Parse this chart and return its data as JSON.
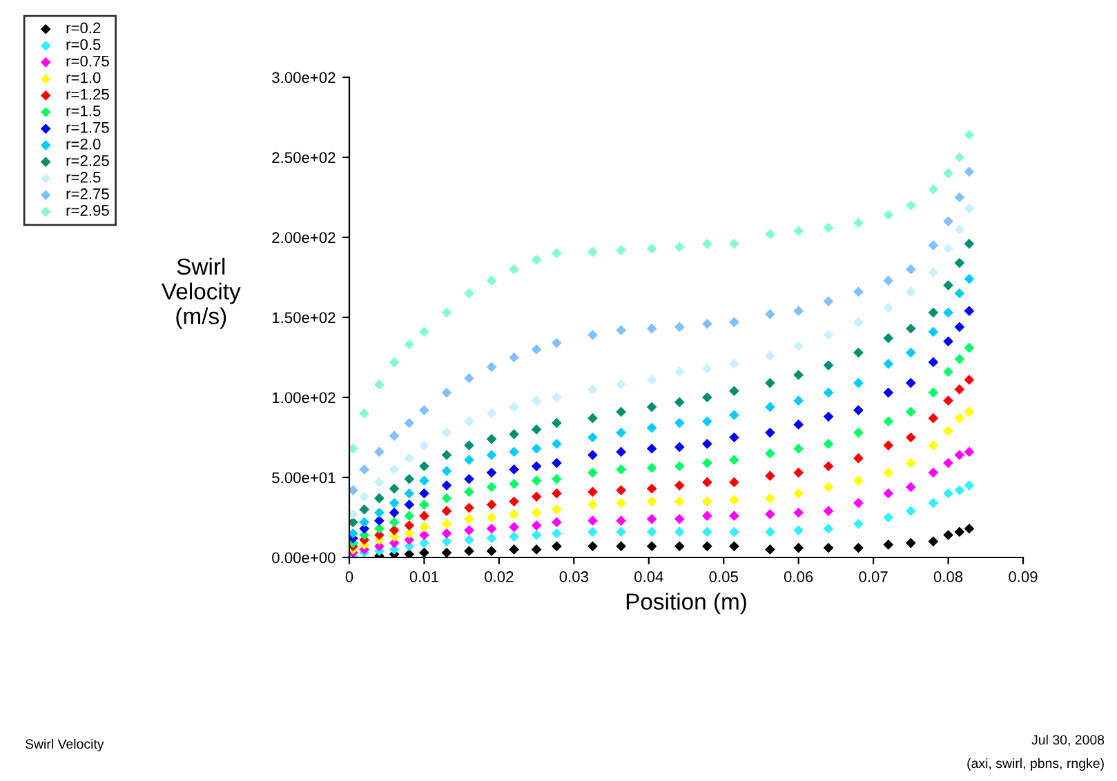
{
  "chart_data": {
    "type": "scatter",
    "xlabel": "Position (m)",
    "ylabel": "Swirl\nVelocity\n(m/s)",
    "x": [
      0.0005,
      0.002,
      0.004,
      0.006,
      0.008,
      0.01,
      0.013,
      0.016,
      0.019,
      0.022,
      0.025,
      0.0277,
      0.0325,
      0.0363,
      0.0404,
      0.0441,
      0.0478,
      0.0514,
      0.0562,
      0.06,
      0.064,
      0.068,
      0.072,
      0.075,
      0.078,
      0.08,
      0.0815,
      0.0828
    ],
    "series": [
      {
        "name": "r=0.2",
        "color": "#000000",
        "values": [
          null,
          null,
          1,
          2,
          2,
          3,
          3,
          4,
          4,
          5,
          5,
          7,
          7,
          7,
          7,
          7,
          7,
          7,
          5,
          6,
          6,
          6,
          8,
          9,
          10,
          14,
          16,
          18
        ]
      },
      {
        "name": "r=0.5",
        "color": "#30f0ff",
        "values": [
          1,
          3,
          4,
          5,
          7,
          9,
          10,
          11,
          12,
          13,
          14,
          15,
          16,
          16,
          16,
          16,
          16,
          16,
          16,
          17,
          18,
          21,
          25,
          29,
          34,
          40,
          42,
          45
        ]
      },
      {
        "name": "r=0.75",
        "color": "#ff00ff",
        "values": [
          3,
          5,
          7,
          9,
          11,
          14,
          15,
          17,
          18,
          19,
          20,
          22,
          23,
          23,
          24,
          24,
          26,
          26,
          27,
          28,
          29,
          34,
          40,
          44,
          53,
          59,
          64,
          66
        ]
      },
      {
        "name": "r=1.0",
        "color": "#ffff00",
        "values": [
          5,
          8,
          11,
          13,
          15,
          19,
          21,
          24,
          25,
          27,
          28,
          30,
          33,
          34,
          35,
          35,
          35,
          36,
          37,
          40,
          44,
          48,
          53,
          59,
          70,
          79,
          87,
          91
        ]
      },
      {
        "name": "r=1.25",
        "color": "#ff0000",
        "values": [
          7,
          11,
          14,
          17,
          20,
          26,
          29,
          31,
          33,
          35,
          38,
          40,
          41,
          42,
          43,
          45,
          47,
          47,
          51,
          53,
          57,
          62,
          70,
          75,
          87,
          98,
          105,
          111
        ]
      },
      {
        "name": "r=1.5",
        "color": "#00ff60",
        "values": [
          9,
          14,
          18,
          22,
          26,
          33,
          37,
          41,
          44,
          46,
          48,
          49,
          53,
          55,
          56,
          57,
          59,
          61,
          65,
          68,
          71,
          78,
          85,
          91,
          103,
          116,
          124,
          131
        ]
      },
      {
        "name": "r=1.75",
        "color": "#0000ff",
        "values": [
          12,
          18,
          23,
          28,
          33,
          40,
          45,
          49,
          53,
          55,
          57,
          59,
          64,
          66,
          68,
          69,
          71,
          75,
          78,
          83,
          88,
          92,
          103,
          109,
          122,
          135,
          144,
          154
        ]
      },
      {
        "name": "r=2.0",
        "color": "#00ccff",
        "values": [
          15,
          22,
          28,
          34,
          40,
          48,
          54,
          61,
          64,
          66,
          68,
          71,
          75,
          78,
          81,
          84,
          85,
          89,
          94,
          98,
          103,
          109,
          121,
          128,
          141,
          153,
          165,
          174
        ]
      },
      {
        "name": "r=2.25",
        "color": "#009070",
        "values": [
          22,
          30,
          37,
          43,
          49,
          57,
          64,
          70,
          74,
          77,
          80,
          84,
          87,
          91,
          94,
          97,
          100,
          104,
          109,
          114,
          120,
          128,
          137,
          143,
          153,
          170,
          184,
          196
        ]
      },
      {
        "name": "r=2.5",
        "color": "#c8f0ff",
        "values": [
          27,
          38,
          47,
          55,
          62,
          70,
          78,
          85,
          90,
          94,
          98,
          100,
          105,
          108,
          111,
          116,
          118,
          121,
          126,
          132,
          139,
          147,
          156,
          166,
          178,
          193,
          205,
          218
        ]
      },
      {
        "name": "r=2.75",
        "color": "#80c0ff",
        "values": [
          42,
          55,
          66,
          76,
          84,
          92,
          103,
          112,
          119,
          125,
          130,
          134,
          139,
          142,
          143,
          144,
          146,
          147,
          152,
          154,
          160,
          166,
          173,
          180,
          195,
          210,
          225,
          241
        ]
      },
      {
        "name": "r=2.95",
        "color": "#80ffc8",
        "values": [
          68,
          90,
          108,
          122,
          133,
          141,
          153,
          165,
          173,
          180,
          186,
          190,
          191,
          192,
          193,
          194,
          196,
          196,
          202,
          204,
          206,
          209,
          214,
          220,
          230,
          240,
          250,
          264
        ]
      }
    ],
    "xlim": [
      0,
      0.09
    ],
    "xticks": [
      0,
      0.01,
      0.02,
      0.03,
      0.04,
      0.05,
      0.06,
      0.07,
      0.08,
      0.09
    ],
    "ylim": [
      0,
      300
    ],
    "yticks": [
      {
        "value": 0,
        "label": "0.00e+00"
      },
      {
        "value": 50,
        "label": "5.00e+01"
      },
      {
        "value": 100,
        "label": "1.00e+02"
      },
      {
        "value": 150,
        "label": "1.50e+02"
      },
      {
        "value": 200,
        "label": "2.00e+02"
      },
      {
        "value": 250,
        "label": "2.50e+02"
      },
      {
        "value": 300,
        "label": "3.00e+02"
      }
    ],
    "grid": false,
    "legend": "top left",
    "marker": "diamond",
    "annotations": [
      "Swirl Velocity",
      "Jul 30, 2008",
      "(axi, swirl, pbns, rngke)"
    ]
  }
}
